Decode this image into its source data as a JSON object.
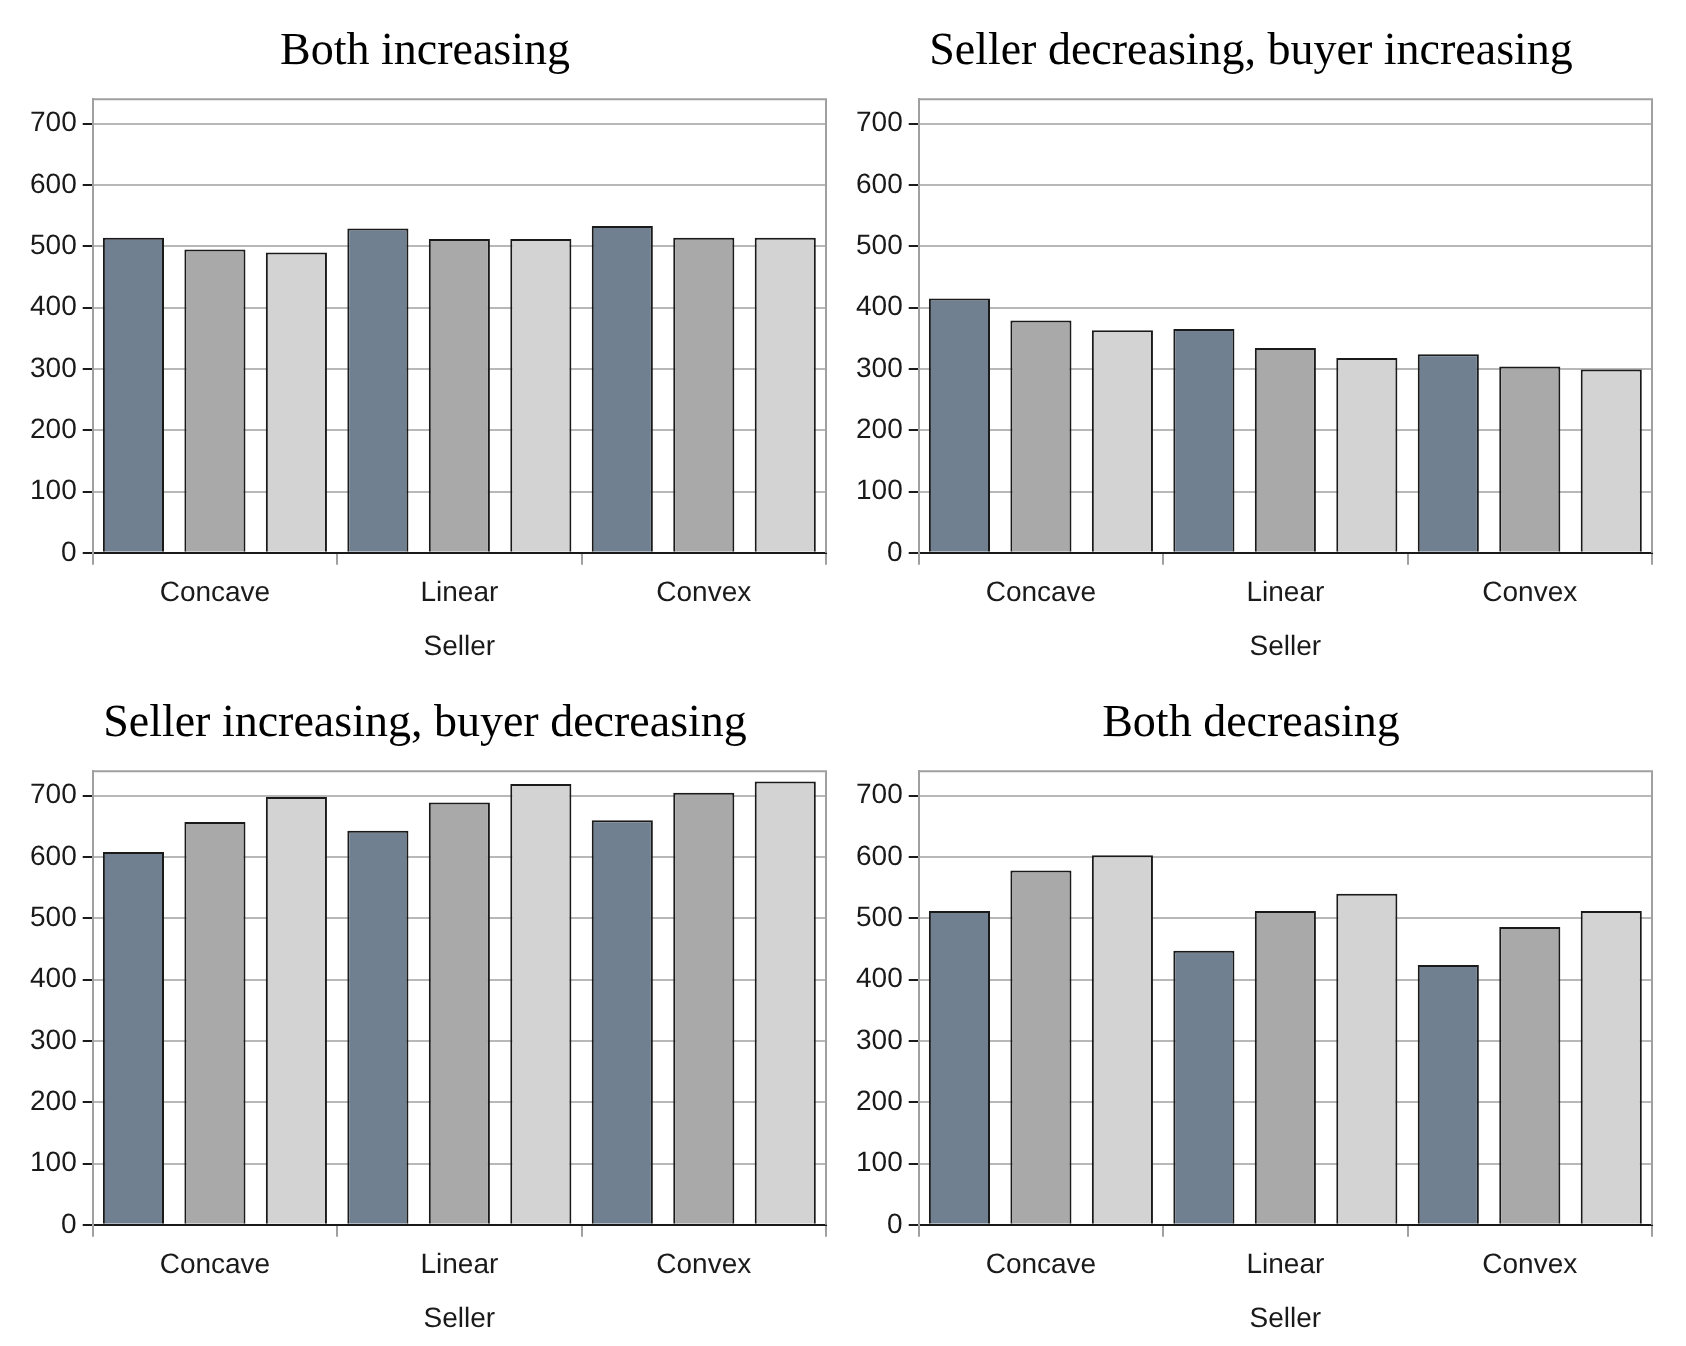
{
  "chart_data": [
    {
      "type": "bar",
      "title": "Both increasing",
      "xlabel": "Seller",
      "categories": [
        "Concave",
        "Linear",
        "Convex"
      ],
      "ylim": [
        0,
        740
      ],
      "yticks": [
        0,
        100,
        200,
        300,
        400,
        500,
        600,
        700
      ],
      "grid": "y",
      "series": [
        {
          "color": "#708090",
          "values": [
            514,
            529,
            533
          ]
        },
        {
          "color": "#a9a9a9",
          "values": [
            495,
            512,
            514
          ]
        },
        {
          "color": "#d3d3d3",
          "values": [
            490,
            512,
            514
          ]
        }
      ]
    },
    {
      "type": "bar",
      "title": "Seller decreasing, buyer increasing",
      "xlabel": "Seller",
      "categories": [
        "Concave",
        "Linear",
        "Convex"
      ],
      "ylim": [
        0,
        740
      ],
      "yticks": [
        0,
        100,
        200,
        300,
        400,
        500,
        600,
        700
      ],
      "grid": "y",
      "series": [
        {
          "color": "#708090",
          "values": [
            415,
            365,
            324
          ]
        },
        {
          "color": "#a9a9a9",
          "values": [
            379,
            334,
            304
          ]
        },
        {
          "color": "#d3d3d3",
          "values": [
            363,
            318,
            299
          ]
        }
      ]
    },
    {
      "type": "bar",
      "title": "Seller increasing, buyer decreasing",
      "xlabel": "Seller",
      "categories": [
        "Concave",
        "Linear",
        "Convex"
      ],
      "ylim": [
        0,
        740
      ],
      "yticks": [
        0,
        100,
        200,
        300,
        400,
        500,
        600,
        700
      ],
      "grid": "y",
      "series": [
        {
          "color": "#708090",
          "values": [
            608,
            643,
            660
          ]
        },
        {
          "color": "#a9a9a9",
          "values": [
            657,
            689,
            705
          ]
        },
        {
          "color": "#d3d3d3",
          "values": [
            698,
            719,
            723
          ]
        }
      ]
    },
    {
      "type": "bar",
      "title": "Both decreasing",
      "xlabel": "Seller",
      "categories": [
        "Concave",
        "Linear",
        "Convex"
      ],
      "ylim": [
        0,
        740
      ],
      "yticks": [
        0,
        100,
        200,
        300,
        400,
        500,
        600,
        700
      ],
      "grid": "y",
      "series": [
        {
          "color": "#708090",
          "values": [
            512,
            447,
            424
          ]
        },
        {
          "color": "#a9a9a9",
          "values": [
            578,
            512,
            486
          ]
        },
        {
          "color": "#d3d3d3",
          "values": [
            603,
            540,
            512
          ]
        }
      ]
    }
  ]
}
